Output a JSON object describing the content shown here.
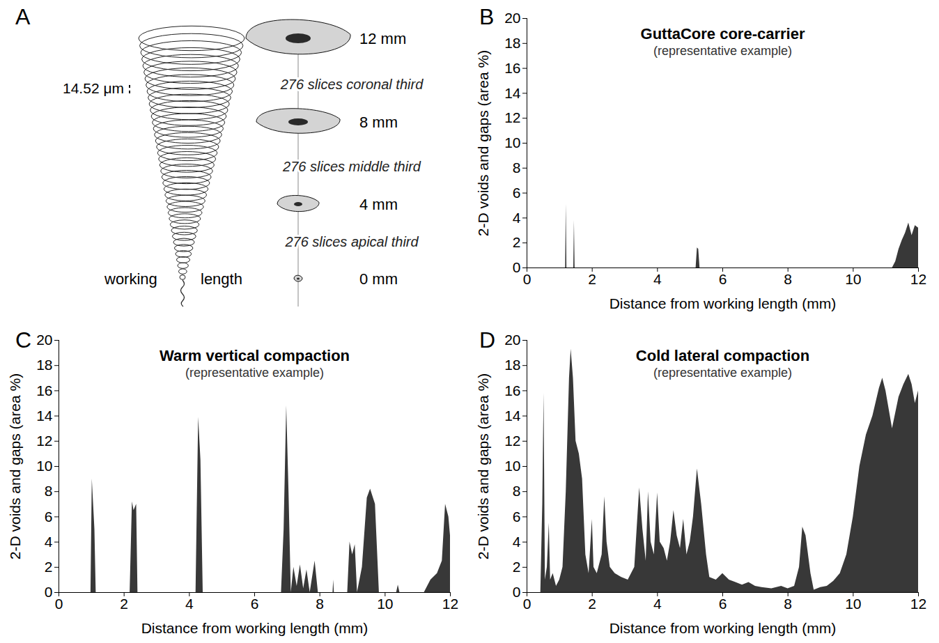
{
  "diagram": {
    "panel": "A",
    "pixel_size": "14.52 μm",
    "sections": [
      {
        "label": "12 mm"
      },
      {
        "label": "8 mm"
      },
      {
        "label": "4 mm"
      },
      {
        "label": "0 mm"
      }
    ],
    "thirds": [
      "276 slices coronal third",
      "276 slices middle third",
      "276 slices apical third"
    ],
    "working_length": [
      "working",
      "length"
    ]
  },
  "chart_data": [
    {
      "panel": "B",
      "type": "area",
      "title": "GuttaCore core-carrier",
      "subtitle": "(representative example)",
      "x_label": "Distance from working length (mm)",
      "y_label": "2-D voids and gaps (area %)",
      "color": "#383838",
      "xlim": [
        0,
        12
      ],
      "xticks": [
        0,
        2,
        4,
        6,
        8,
        10,
        12
      ],
      "ylim": [
        0,
        20
      ],
      "yticks": [
        0,
        2,
        4,
        6,
        8,
        10,
        12,
        14,
        16,
        18,
        20
      ],
      "grid": false,
      "x": [
        0,
        1.18,
        1.2,
        1.22,
        1.43,
        1.45,
        1.47,
        5.18,
        5.22,
        5.26,
        5.3,
        11.2,
        11.3,
        11.4,
        11.5,
        11.6,
        11.7,
        11.8,
        11.9,
        12
      ],
      "values": [
        0,
        0,
        5.1,
        0,
        0,
        3.8,
        0,
        0,
        1.6,
        1.5,
        0,
        0,
        0.5,
        1.5,
        2.2,
        2.8,
        3.6,
        2.6,
        3.4,
        3.2
      ]
    },
    {
      "panel": "C",
      "type": "area",
      "title": "Warm vertical compaction",
      "subtitle": "(representative example)",
      "x_label": "Distance from working length (mm)",
      "y_label": "2-D voids and gaps (area %)",
      "color": "#383838",
      "xlim": [
        0,
        12
      ],
      "xticks": [
        0,
        2,
        4,
        6,
        8,
        10,
        12
      ],
      "ylim": [
        0,
        20
      ],
      "yticks": [
        0,
        2,
        4,
        6,
        8,
        10,
        12,
        14,
        16,
        18,
        20
      ],
      "grid": false,
      "x": [
        0,
        0.98,
        1.02,
        1.1,
        1.14,
        2.18,
        2.25,
        2.3,
        2.38,
        2.42,
        4.2,
        4.28,
        4.35,
        4.42,
        6.82,
        6.9,
        6.98,
        7.05,
        7.12,
        7.2,
        7.3,
        7.4,
        7.5,
        7.6,
        7.7,
        7.85,
        7.95,
        8.4,
        8.42,
        8.44,
        8.85,
        8.92,
        9.0,
        9.08,
        9.15,
        9.3,
        9.45,
        9.55,
        9.7,
        9.82,
        10.35,
        10.4,
        10.45,
        11.2,
        11.4,
        11.6,
        11.75,
        11.85,
        11.95,
        12
      ],
      "values": [
        0,
        0,
        9,
        5,
        0,
        0,
        7.2,
        6.5,
        7,
        0,
        0,
        13.9,
        10.5,
        0,
        0,
        5,
        14.8,
        8,
        0,
        2,
        0.5,
        2.2,
        0.3,
        1.8,
        0,
        2.5,
        0,
        0,
        1,
        0,
        0,
        4,
        3,
        3.8,
        0,
        2,
        7.5,
        8.2,
        7,
        0,
        0,
        0.6,
        0,
        0,
        1,
        1.5,
        2.5,
        7,
        6,
        4.5
      ]
    },
    {
      "panel": "D",
      "type": "area",
      "title": "Cold lateral compaction",
      "subtitle": "(representative example)",
      "x_label": "Distance from working length (mm)",
      "y_label": "2-D voids and gaps (area %)",
      "color": "#383838",
      "xlim": [
        0,
        12
      ],
      "xticks": [
        0,
        2,
        4,
        6,
        8,
        10,
        12
      ],
      "ylim": [
        0,
        20
      ],
      "yticks": [
        0,
        2,
        4,
        6,
        8,
        10,
        12,
        14,
        16,
        18,
        20
      ],
      "grid": false,
      "x": [
        0,
        0.42,
        0.48,
        0.52,
        0.56,
        0.62,
        0.68,
        0.72,
        0.8,
        0.9,
        1.0,
        1.1,
        1.2,
        1.3,
        1.35,
        1.42,
        1.5,
        1.6,
        1.7,
        1.8,
        1.9,
        2.0,
        2.05,
        2.15,
        2.3,
        2.38,
        2.45,
        2.55,
        2.7,
        2.9,
        3.1,
        3.3,
        3.45,
        3.55,
        3.65,
        3.72,
        3.8,
        3.9,
        4.0,
        4.08,
        4.2,
        4.3,
        4.4,
        4.5,
        4.6,
        4.7,
        4.8,
        4.9,
        5.0,
        5.1,
        5.22,
        5.35,
        5.5,
        5.6,
        5.8,
        6.0,
        6.2,
        6.4,
        6.6,
        6.8,
        7.0,
        7.2,
        7.5,
        7.8,
        8.0,
        8.2,
        8.35,
        8.45,
        8.55,
        8.7,
        8.8,
        9.0,
        9.2,
        9.4,
        9.6,
        9.8,
        10.0,
        10.2,
        10.4,
        10.6,
        10.8,
        10.9,
        11.0,
        11.2,
        11.4,
        11.55,
        11.7,
        11.8,
        11.9,
        12
      ],
      "values": [
        0,
        0,
        7,
        15.8,
        1,
        2,
        5.5,
        1,
        1.5,
        0.5,
        1,
        2,
        8,
        17,
        19.3,
        17,
        12,
        11,
        9,
        3,
        1.5,
        5.8,
        2,
        1.5,
        3,
        7.6,
        4,
        2,
        1.5,
        1.2,
        1,
        2,
        8.3,
        5,
        2.5,
        8,
        4,
        3,
        7.9,
        4,
        3.5,
        2.5,
        4,
        6.5,
        4.5,
        3.5,
        5.8,
        3,
        4,
        6,
        9.8,
        7,
        3,
        1.2,
        1,
        1.5,
        1,
        0.8,
        0.6,
        0.8,
        0.5,
        0.4,
        0.3,
        0.5,
        0.3,
        0.5,
        2,
        5.2,
        4.5,
        1.5,
        0.2,
        0.4,
        0.5,
        0.9,
        1.5,
        3,
        6,
        10,
        12.5,
        14,
        16.2,
        17,
        16,
        13,
        15.5,
        16.5,
        17.3,
        16.5,
        15,
        16
      ]
    }
  ]
}
